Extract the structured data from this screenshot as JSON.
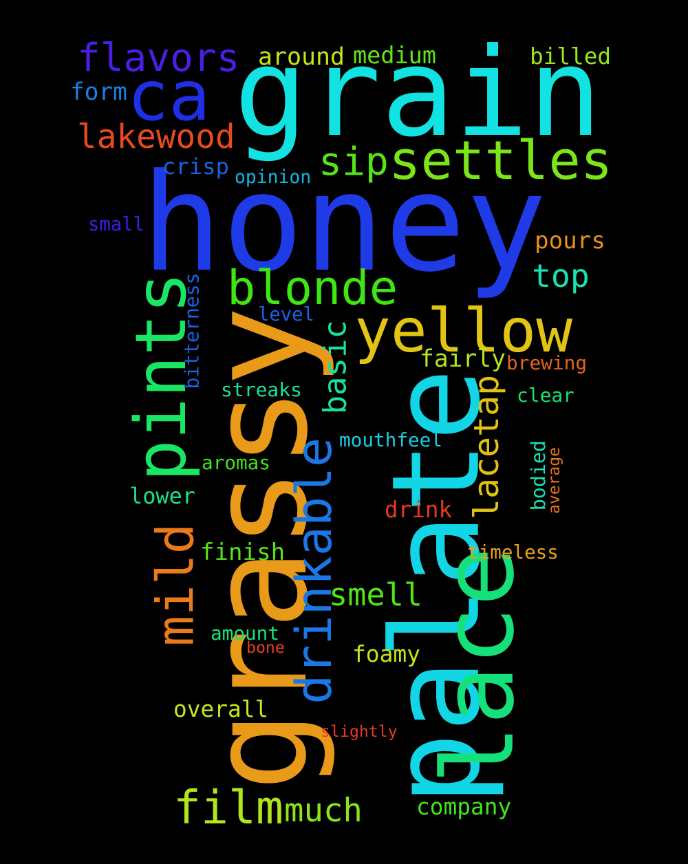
{
  "words": [
    {
      "text": "honey",
      "color": "#1f3be8",
      "rotated": false
    },
    {
      "text": "grain",
      "color": "#12e2e2",
      "rotated": false
    },
    {
      "text": "grassy",
      "color": "#e89a18",
      "rotated": true
    },
    {
      "text": "palate",
      "color": "#12d6e6",
      "rotated": true
    },
    {
      "text": "lacetap",
      "color": "#e0c212",
      "rotated": true
    },
    {
      "text": "lace",
      "color": "#16e07a",
      "rotated": true
    },
    {
      "text": "ca",
      "color": "#1f2fe6",
      "rotated": false
    },
    {
      "text": "flavors",
      "color": "#4a1ee6",
      "rotated": false
    },
    {
      "text": "settles",
      "color": "#7ae61a",
      "rotated": false
    },
    {
      "text": "sip",
      "color": "#54e614",
      "rotated": false
    },
    {
      "text": "lakewood",
      "color": "#e84a20",
      "rotated": false
    },
    {
      "text": "blonde",
      "color": "#3ee612",
      "rotated": false
    },
    {
      "text": "yellow",
      "color": "#e2c414",
      "rotated": false
    },
    {
      "text": "pints",
      "color": "#18e664",
      "rotated": true
    },
    {
      "text": "mild",
      "color": "#ea7a1a",
      "rotated": true
    },
    {
      "text": "drinkable",
      "color": "#1a78e6",
      "rotated": true
    },
    {
      "text": "film",
      "color": "#b0e61a",
      "rotated": false
    },
    {
      "text": "much",
      "color": "#8ae61a",
      "rotated": false
    },
    {
      "text": "smell",
      "color": "#4ee614",
      "rotated": false
    },
    {
      "text": "top",
      "color": "#16e2b4",
      "rotated": false
    },
    {
      "text": "basic",
      "color": "#16e2a0",
      "rotated": true
    },
    {
      "text": "around",
      "color": "#c4e61a",
      "rotated": false
    },
    {
      "text": "medium",
      "color": "#5ee61a",
      "rotated": false
    },
    {
      "text": "billed",
      "color": "#9ae61a",
      "rotated": false
    },
    {
      "text": "form",
      "color": "#1a82e6",
      "rotated": false
    },
    {
      "text": "crisp",
      "color": "#1a62e6",
      "rotated": false
    },
    {
      "text": "opinion",
      "color": "#16b4e2",
      "rotated": false
    },
    {
      "text": "small",
      "color": "#3a20e6",
      "rotated": false
    },
    {
      "text": "pours",
      "color": "#e8901a",
      "rotated": false
    },
    {
      "text": "bitterness",
      "color": "#1a62e6",
      "rotated": true
    },
    {
      "text": "level",
      "color": "#1a62e6",
      "rotated": false
    },
    {
      "text": "fairly",
      "color": "#b4e61a",
      "rotated": false
    },
    {
      "text": "brewing",
      "color": "#e8641a",
      "rotated": false
    },
    {
      "text": "streaks",
      "color": "#16e29a",
      "rotated": false
    },
    {
      "text": "clear",
      "color": "#16e270",
      "rotated": false
    },
    {
      "text": "mouthfeel",
      "color": "#16cee2",
      "rotated": false
    },
    {
      "text": "bodied",
      "color": "#16e2b4",
      "rotated": true
    },
    {
      "text": "average",
      "color": "#e8741a",
      "rotated": true
    },
    {
      "text": "aromas",
      "color": "#3ee61a",
      "rotated": false
    },
    {
      "text": "lower",
      "color": "#16e28a",
      "rotated": false
    },
    {
      "text": "drink",
      "color": "#e83a1a",
      "rotated": false
    },
    {
      "text": "finish",
      "color": "#58e61a",
      "rotated": false
    },
    {
      "text": "timeless",
      "color": "#e8a21a",
      "rotated": false
    },
    {
      "text": "amount",
      "color": "#16e27a",
      "rotated": false
    },
    {
      "text": "bone",
      "color": "#e8401a",
      "rotated": false
    },
    {
      "text": "foamy",
      "color": "#c2e61a",
      "rotated": false
    },
    {
      "text": "overall",
      "color": "#c8e61a",
      "rotated": false
    },
    {
      "text": "slightly",
      "color": "#e83a22",
      "rotated": false
    },
    {
      "text": "company",
      "color": "#40e61a",
      "rotated": false
    }
  ]
}
